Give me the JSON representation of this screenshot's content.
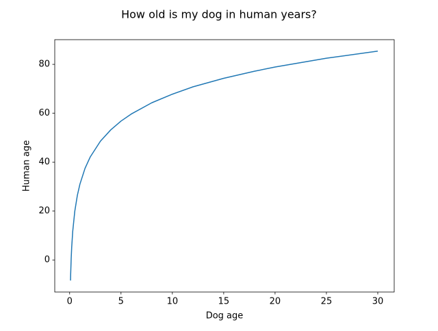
{
  "chart_data": {
    "type": "line",
    "title": "How old is my dog in human years?",
    "x_label": "Dog age",
    "y_label": "Human age",
    "x": [
      0.085,
      0.1,
      0.15,
      0.2,
      0.3,
      0.5,
      0.75,
      1,
      1.5,
      2,
      3,
      4,
      5,
      6,
      8,
      10,
      12,
      15,
      18,
      20,
      25,
      30
    ],
    "series": [
      {
        "name": "Human age",
        "color": "#1f77b4",
        "values": [
          -8.4,
          -5.8,
          0.6,
          5.2,
          11.7,
          19.9,
          26.4,
          31,
          37.5,
          42.1,
          48.6,
          53.2,
          56.8,
          59.7,
          64.3,
          67.8,
          70.8,
          74.3,
          77.2,
          78.9,
          82.5,
          85.4
        ]
      }
    ],
    "xlim": [
      -1.45,
      31.6
    ],
    "ylim": [
      -13.1,
      90.1
    ],
    "xticks": [
      0,
      5,
      10,
      15,
      20,
      25,
      30
    ],
    "yticks": [
      0,
      20,
      40,
      60,
      80
    ],
    "grid": false
  }
}
